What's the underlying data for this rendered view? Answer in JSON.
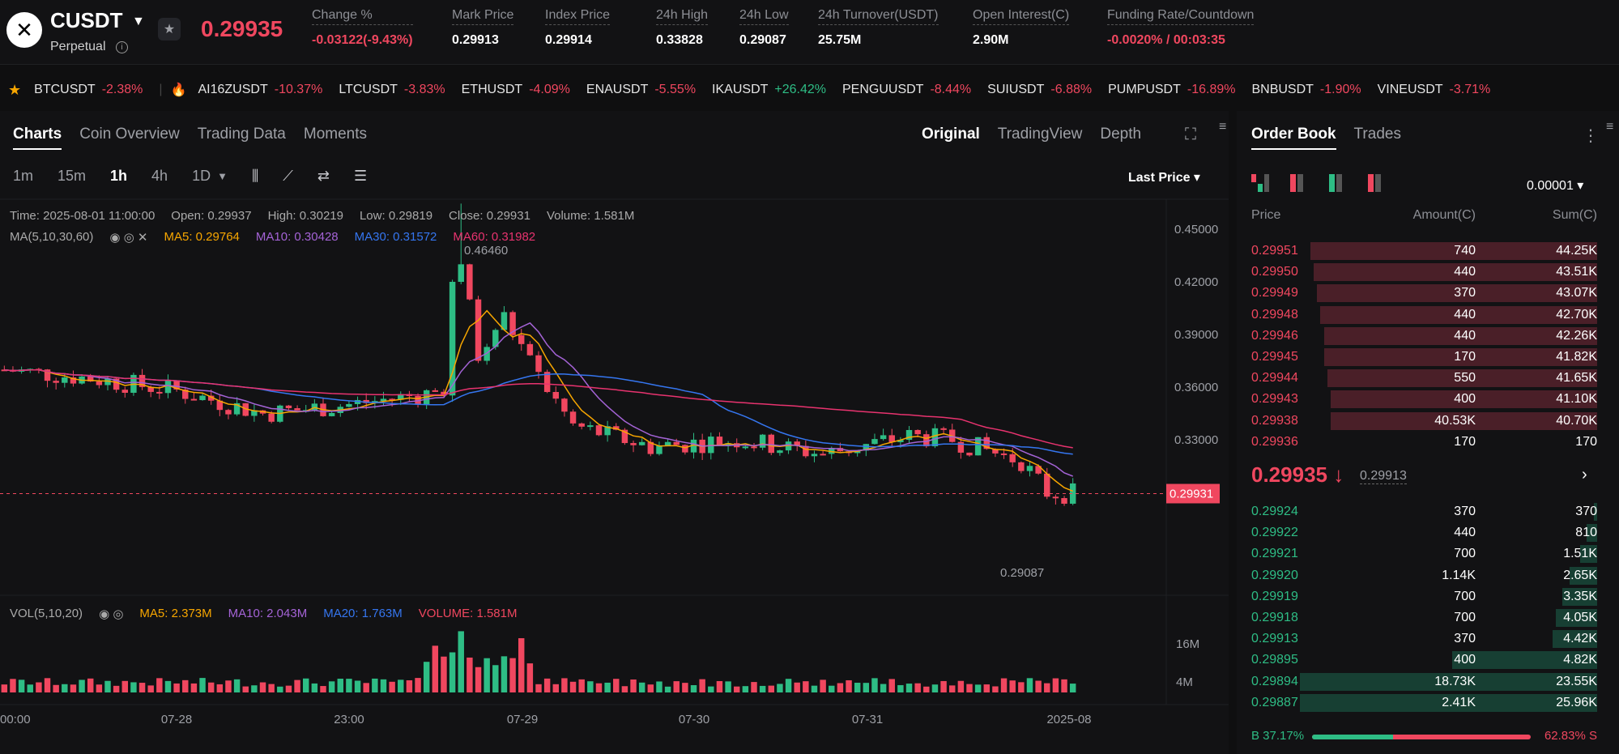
{
  "header": {
    "logo_glyph": "✕",
    "symbol": "CUSDT",
    "type": "Perpetual",
    "last_price": "0.29935",
    "stats": [
      {
        "label": "Change %",
        "value": "-0.03122(-9.43%)",
        "color": "#f0475f"
      },
      {
        "label": "Mark Price",
        "value": "0.29913",
        "color": "#ffffff"
      },
      {
        "label": "Index Price",
        "value": "0.29914",
        "color": "#ffffff"
      },
      {
        "label": "24h High",
        "value": "0.33828",
        "color": "#ffffff"
      },
      {
        "label": "24h Low",
        "value": "0.29087",
        "color": "#ffffff"
      },
      {
        "label": "24h Turnover(USDT)",
        "value": "25.75M",
        "color": "#ffffff"
      },
      {
        "label": "Open Interest(C)",
        "value": "2.90M",
        "color": "#ffffff"
      },
      {
        "label": "Funding Rate/Countdown",
        "value": "-0.0020% / 00:03:35",
        "color": "#f0475f"
      }
    ]
  },
  "ticker": [
    {
      "symbol": "BTCUSDT",
      "change": "-2.38%",
      "up": false
    },
    {
      "symbol": "AI16ZUSDT",
      "change": "-10.37%",
      "up": false
    },
    {
      "symbol": "LTCUSDT",
      "change": "-3.83%",
      "up": false
    },
    {
      "symbol": "ETHUSDT",
      "change": "-4.09%",
      "up": false
    },
    {
      "symbol": "ENAUSDT",
      "change": "-5.55%",
      "up": false
    },
    {
      "symbol": "IKAUSDT",
      "change": "+26.42%",
      "up": true
    },
    {
      "symbol": "PENGUUSDT",
      "change": "-8.44%",
      "up": false
    },
    {
      "symbol": "SUIUSDT",
      "change": "-6.88%",
      "up": false
    },
    {
      "symbol": "PUMPUSDT",
      "change": "-16.89%",
      "up": false
    },
    {
      "symbol": "BNBUSDT",
      "change": "-1.90%",
      "up": false
    },
    {
      "symbol": "VINEUSDT",
      "change": "-3.71%",
      "up": false
    }
  ],
  "chart_tabs": [
    "Charts",
    "Coin Overview",
    "Trading Data",
    "Moments"
  ],
  "view_tabs": [
    "Original",
    "TradingView",
    "Depth"
  ],
  "intervals": [
    "1m",
    "15m",
    "1h",
    "4h",
    "1D"
  ],
  "price_type": "Last Price",
  "ohlc": {
    "time": "Time: 2025-08-01 11:00:00",
    "open": "Open: 0.29937",
    "high": "High: 0.30219",
    "low": "Low: 0.29819",
    "close": "Close: 0.29931",
    "volume": "Volume: 1.581M"
  },
  "ma": {
    "label": "MA(5,10,30,60)",
    "ma5": "MA5: 0.29764",
    "ma10": "MA10: 0.30428",
    "ma30": "MA30: 0.31572",
    "ma60": "MA60: 0.31982"
  },
  "vol": {
    "label": "VOL(5,10,20)",
    "ma5": "MA5: 2.373M",
    "ma10": "MA10: 2.043M",
    "ma20": "MA20: 1.763M",
    "volume": "VOLUME: 1.581M"
  },
  "chart_data": {
    "type": "candlestick",
    "y_ticks": [
      "0.45000",
      "0.42000",
      "0.39000",
      "0.36000",
      "0.33000"
    ],
    "ylim": [
      0.285,
      0.475
    ],
    "vol_ticks": [
      "16M",
      "4M"
    ],
    "x_labels": [
      "00:00",
      "07-28",
      "23:00",
      "07-29",
      "07-30",
      "07-31",
      "2025-08"
    ],
    "high_marker": "0.46460",
    "low_marker": "0.29087",
    "current_price": "0.29931",
    "colors": {
      "up": "#2ebd85",
      "down": "#f0475f",
      "ma5": "#f7a600",
      "ma10": "#a463d6",
      "ma30": "#3576f0",
      "ma60": "#e8336f"
    }
  },
  "orderbook": {
    "tabs": [
      "Order Book",
      "Trades"
    ],
    "precision": "0.00001",
    "headers": [
      "Price",
      "Amount(C)",
      "Sum(C)"
    ],
    "asks": [
      [
        "0.29951",
        "740",
        "44.25K",
        0.83
      ],
      [
        "0.29950",
        "440",
        "43.51K",
        0.82
      ],
      [
        "0.29949",
        "370",
        "43.07K",
        0.81
      ],
      [
        "0.29948",
        "440",
        "42.70K",
        0.8
      ],
      [
        "0.29946",
        "440",
        "42.26K",
        0.79
      ],
      [
        "0.29945",
        "170",
        "41.82K",
        0.79
      ],
      [
        "0.29944",
        "550",
        "41.65K",
        0.78
      ],
      [
        "0.29943",
        "400",
        "41.10K",
        0.77
      ],
      [
        "0.29938",
        "40.53K",
        "40.70K",
        0.77
      ],
      [
        "0.29936",
        "170",
        "170",
        0.0
      ]
    ],
    "mid_price": "0.29935 ↓",
    "mark_price": "0.29913",
    "bids": [
      [
        "0.29924",
        "370",
        "370",
        0.01
      ],
      [
        "0.29922",
        "440",
        "810",
        0.03
      ],
      [
        "0.29921",
        "700",
        "1.51K",
        0.05
      ],
      [
        "0.29920",
        "1.14K",
        "2.65K",
        0.08
      ],
      [
        "0.29919",
        "700",
        "3.35K",
        0.1
      ],
      [
        "0.29918",
        "700",
        "4.05K",
        0.12
      ],
      [
        "0.29913",
        "370",
        "4.42K",
        0.13
      ],
      [
        "0.29895",
        "400",
        "4.82K",
        0.42
      ],
      [
        "0.29894",
        "18.73K",
        "23.55K",
        0.86
      ],
      [
        "0.29887",
        "2.41K",
        "25.96K",
        0.86
      ]
    ],
    "buy_ratio": "B 37.17%",
    "sell_ratio": "62.83% S",
    "buy_frac": 0.3717
  }
}
